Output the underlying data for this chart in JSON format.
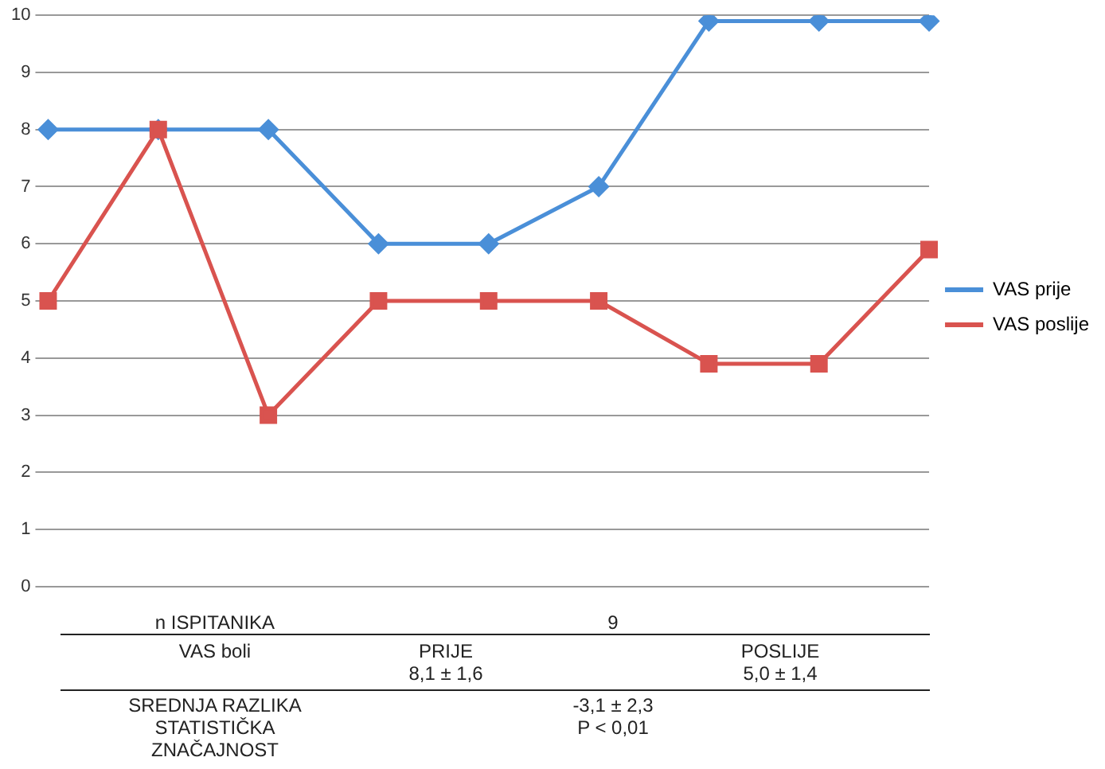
{
  "chart_data": {
    "type": "line",
    "categories": [
      null,
      null,
      null,
      null,
      null,
      null,
      null,
      null,
      null
    ],
    "series": [
      {
        "name": "VAS prije",
        "color": "#4a8fd8",
        "marker": "diamond",
        "values": [
          8,
          8,
          8,
          6,
          6,
          7,
          9.9,
          9.9,
          9.9
        ]
      },
      {
        "name": "VAS poslije",
        "color": "#d9534f",
        "marker": "square",
        "values": [
          5,
          8,
          3,
          5,
          5,
          5,
          3.9,
          3.9,
          5.9
        ]
      }
    ],
    "ylim": [
      0,
      10
    ],
    "yticks": [
      0,
      1,
      2,
      3,
      4,
      5,
      6,
      7,
      8,
      9,
      10
    ],
    "grid": "y",
    "legend": "right",
    "annotations": [
      "n ISPITANIKA",
      "9",
      "VAS boli",
      "PRIJE\n8,1 ± 1,6",
      "POSLIJE\n5,0 ± 1,4",
      "SREDNJA RAZLIKA\nSTATISTIČKA\nZNAČAJNOST",
      "-3,1 ± 2,3\nP < 0,01"
    ]
  }
}
